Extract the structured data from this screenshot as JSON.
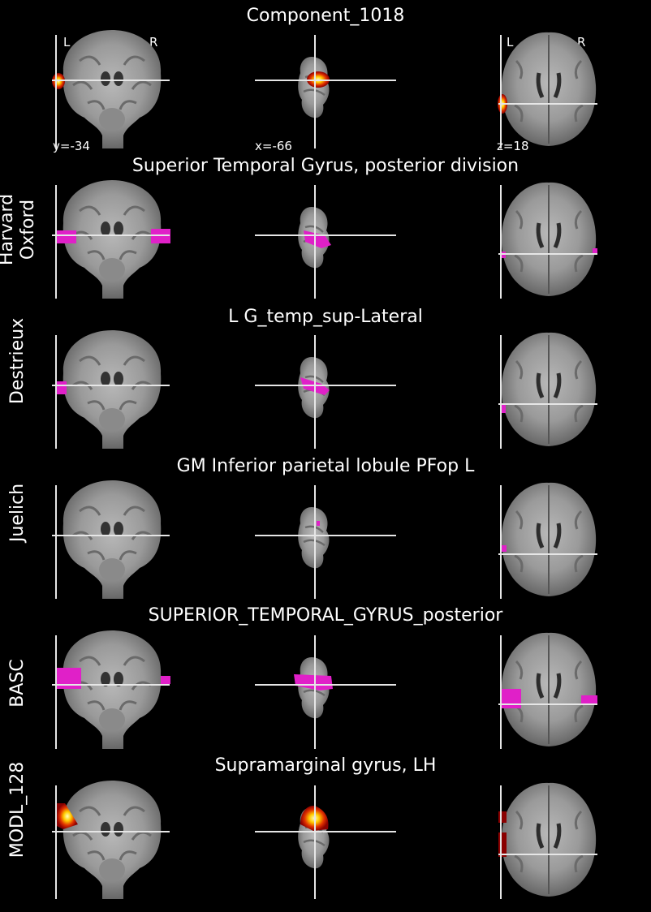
{
  "figure": {
    "title": "Component_1018",
    "coords": {
      "coronal": "y=-34",
      "sagittal": "x=-66",
      "axial": "z=18"
    },
    "orientation": {
      "left": "L",
      "right": "R"
    }
  },
  "rows": [
    {
      "atlas": "",
      "region": "",
      "overlay": "heat"
    },
    {
      "atlas": "Harvard\nOxford",
      "region": "Superior Temporal Gyrus, posterior division",
      "overlay": "magenta"
    },
    {
      "atlas": "Destrieux",
      "region": "L G_temp_sup-Lateral",
      "overlay": "magenta"
    },
    {
      "atlas": "Juelich",
      "region": "GM Inferior parietal lobule PFop L",
      "overlay": "magenta"
    },
    {
      "atlas": "BASC",
      "region": "SUPERIOR_TEMPORAL_GYRUS_posterior",
      "overlay": "magenta"
    },
    {
      "atlas": "MODL_128",
      "region": "Supramarginal gyrus, LH",
      "overlay": "heat"
    }
  ],
  "colors": {
    "background": "#000000",
    "crosshair": "#e6e6e6",
    "overlay_magenta": "#e020c8",
    "overlay_heat": "#ffcc00"
  },
  "views": [
    "coronal",
    "sagittal",
    "axial"
  ]
}
